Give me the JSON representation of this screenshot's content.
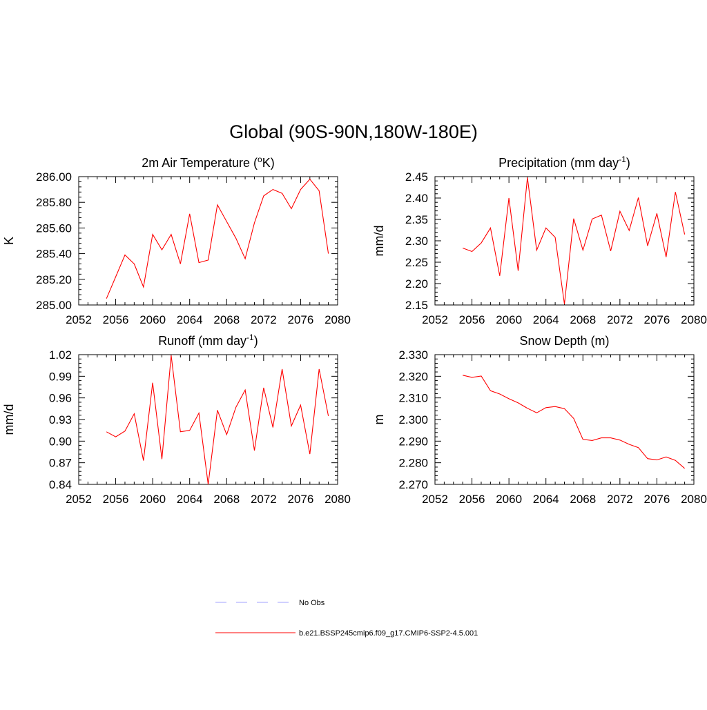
{
  "figure": {
    "title": "Global (90S-90N,180W-180E)"
  },
  "chart_data": [
    {
      "type": "line",
      "title": "2m Air Temperature (",
      "title_sup": "o",
      "title_suffix": "K)",
      "ylabel": "K",
      "xlim": [
        2052,
        2080
      ],
      "ylim": [
        285.0,
        286.0
      ],
      "xticks": [
        "2052",
        "2056",
        "2060",
        "2064",
        "2068",
        "2072",
        "2076",
        "2080"
      ],
      "yticks": [
        "285.00",
        "285.20",
        "285.40",
        "285.60",
        "285.80",
        "286.00"
      ],
      "ytick_values": [
        285.0,
        285.2,
        285.4,
        285.6,
        285.8,
        286.0
      ],
      "color": "#ff0000",
      "x": [
        2055,
        2056,
        2057,
        2058,
        2059,
        2060,
        2061,
        2062,
        2063,
        2064,
        2065,
        2066,
        2067,
        2068,
        2069,
        2070,
        2071,
        2072,
        2073,
        2074,
        2075,
        2076,
        2077,
        2078,
        2079
      ],
      "y": [
        285.05,
        285.22,
        285.39,
        285.32,
        285.14,
        285.55,
        285.43,
        285.55,
        285.32,
        285.71,
        285.33,
        285.35,
        285.78,
        285.65,
        285.52,
        285.36,
        285.64,
        285.85,
        285.9,
        285.87,
        285.75,
        285.9,
        285.98,
        285.89,
        285.4
      ]
    },
    {
      "type": "line",
      "title": "Precipitation (mm day",
      "title_sup": "-1",
      "title_suffix": ")",
      "ylabel": "mm/d",
      "xlim": [
        2052,
        2080
      ],
      "ylim": [
        2.15,
        2.45
      ],
      "xticks": [
        "2052",
        "2056",
        "2060",
        "2064",
        "2068",
        "2072",
        "2076",
        "2080"
      ],
      "yticks": [
        "2.15",
        "2.20",
        "2.25",
        "2.30",
        "2.35",
        "2.40",
        "2.45"
      ],
      "ytick_values": [
        2.15,
        2.2,
        2.25,
        2.3,
        2.35,
        2.4,
        2.45
      ],
      "color": "#ff0000",
      "x": [
        2055,
        2056,
        2057,
        2058,
        2059,
        2060,
        2061,
        2062,
        2063,
        2064,
        2065,
        2066,
        2067,
        2068,
        2069,
        2070,
        2071,
        2072,
        2073,
        2074,
        2075,
        2076,
        2077,
        2078,
        2079
      ],
      "y": [
        2.283,
        2.275,
        2.295,
        2.33,
        2.218,
        2.4,
        2.23,
        2.448,
        2.278,
        2.33,
        2.308,
        2.152,
        2.352,
        2.278,
        2.351,
        2.36,
        2.276,
        2.369,
        2.324,
        2.401,
        2.288,
        2.364,
        2.262,
        2.414,
        2.315
      ]
    },
    {
      "type": "line",
      "title": "Runoff (mm day",
      "title_sup": "-1",
      "title_suffix": ")",
      "ylabel": "mm/d",
      "xlim": [
        2052,
        2080
      ],
      "ylim": [
        0.84,
        1.02
      ],
      "xticks": [
        "2052",
        "2056",
        "2060",
        "2064",
        "2068",
        "2072",
        "2076",
        "2080"
      ],
      "yticks": [
        "0.84",
        "0.87",
        "0.90",
        "0.93",
        "0.96",
        "0.99",
        "1.02"
      ],
      "ytick_values": [
        0.84,
        0.87,
        0.9,
        0.93,
        0.96,
        0.99,
        1.02
      ],
      "color": "#ff0000",
      "x": [
        2055,
        2056,
        2057,
        2058,
        2059,
        2060,
        2061,
        2062,
        2063,
        2064,
        2065,
        2066,
        2067,
        2068,
        2069,
        2070,
        2071,
        2072,
        2073,
        2074,
        2075,
        2076,
        2077,
        2078,
        2079
      ],
      "y": [
        0.913,
        0.906,
        0.914,
        0.938,
        0.873,
        0.981,
        0.875,
        1.019,
        0.913,
        0.915,
        0.939,
        0.84,
        0.943,
        0.909,
        0.947,
        0.971,
        0.887,
        0.974,
        0.919,
        1.0,
        0.921,
        0.95,
        0.882,
        1.0,
        0.935
      ]
    },
    {
      "type": "line",
      "title": "Snow Depth (m)",
      "title_sup": "",
      "title_suffix": "",
      "ylabel": "m",
      "xlim": [
        2052,
        2080
      ],
      "ylim": [
        2.27,
        2.33
      ],
      "xticks": [
        "2052",
        "2056",
        "2060",
        "2064",
        "2068",
        "2072",
        "2076",
        "2080"
      ],
      "yticks": [
        "2.270",
        "2.280",
        "2.290",
        "2.300",
        "2.310",
        "2.320",
        "2.330"
      ],
      "ytick_values": [
        2.27,
        2.28,
        2.29,
        2.3,
        2.31,
        2.32,
        2.33
      ],
      "color": "#ff0000",
      "x": [
        2055,
        2056,
        2057,
        2058,
        2059,
        2060,
        2061,
        2062,
        2063,
        2064,
        2065,
        2066,
        2067,
        2068,
        2069,
        2070,
        2071,
        2072,
        2073,
        2074,
        2075,
        2076,
        2077,
        2078,
        2079
      ],
      "y": [
        2.3205,
        2.3195,
        2.3201,
        2.3133,
        2.3118,
        2.3096,
        2.3077,
        2.3052,
        2.3031,
        2.3055,
        2.306,
        2.305,
        2.3005,
        2.2908,
        2.2903,
        2.2915,
        2.2915,
        2.2905,
        2.2885,
        2.287,
        2.2819,
        2.2813,
        2.2827,
        2.2811,
        2.2774
      ]
    }
  ],
  "legend": [
    {
      "label": "No Obs",
      "color": "#a0a0ff",
      "style": "dashed"
    },
    {
      "label": "b.e21.BSSP245cmip6.f09_g17.CMIP6-SSP2-4.5.001",
      "color": "#ff0000",
      "style": "solid"
    }
  ]
}
